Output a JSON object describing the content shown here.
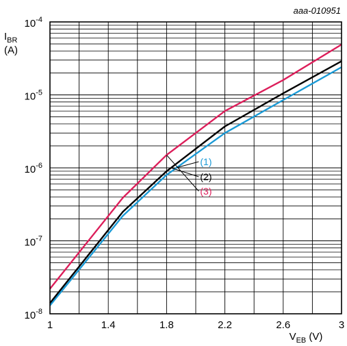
{
  "chart_data": {
    "type": "line",
    "annotation": "aaa-010951",
    "ylabel": {
      "main": "I",
      "sub": "BR",
      "unit": "(A)"
    },
    "xlabel": {
      "main": "V",
      "sub": "EB",
      "unit": " (V)"
    },
    "xlim": [
      1.0,
      3.0
    ],
    "ylim": [
      1e-08,
      0.0001
    ],
    "yscale": "log",
    "grid": true,
    "x_ticks": [
      "1",
      "1.4",
      "1.8",
      "2.2",
      "2.6",
      "3"
    ],
    "x_tick_values": [
      1.0,
      1.4,
      1.8,
      2.2,
      2.6,
      3.0
    ],
    "y_ticks": [
      {
        "base": "10",
        "exp": "-8",
        "value": 1e-08
      },
      {
        "base": "10",
        "exp": "-7",
        "value": 1e-07
      },
      {
        "base": "10",
        "exp": "-6",
        "value": 1e-06
      },
      {
        "base": "10",
        "exp": "-5",
        "value": 1e-05
      },
      {
        "base": "10",
        "exp": "-4",
        "value": 0.0001
      }
    ],
    "series": [
      {
        "name": "(1)",
        "color": "#1a9ad6",
        "x": [
          1.0,
          1.5,
          1.8,
          2.2,
          2.6,
          3.0
        ],
        "y": [
          1.3e-08,
          2.2e-07,
          8e-07,
          3e-06,
          8.5e-06,
          2.4e-05
        ]
      },
      {
        "name": "(2)",
        "color": "#000000",
        "x": [
          1.0,
          1.5,
          1.8,
          2.2,
          2.6,
          3.0
        ],
        "y": [
          1.4e-08,
          2.5e-07,
          9e-07,
          3.7e-06,
          1.05e-05,
          2.9e-05
        ]
      },
      {
        "name": "(3)",
        "color": "#dc1e5a",
        "x": [
          1.0,
          1.5,
          1.8,
          2.2,
          2.6,
          3.0
        ],
        "y": [
          2.2e-08,
          3.9e-07,
          1.5e-06,
          6e-06,
          1.6e-05,
          4.9e-05
        ]
      }
    ]
  }
}
